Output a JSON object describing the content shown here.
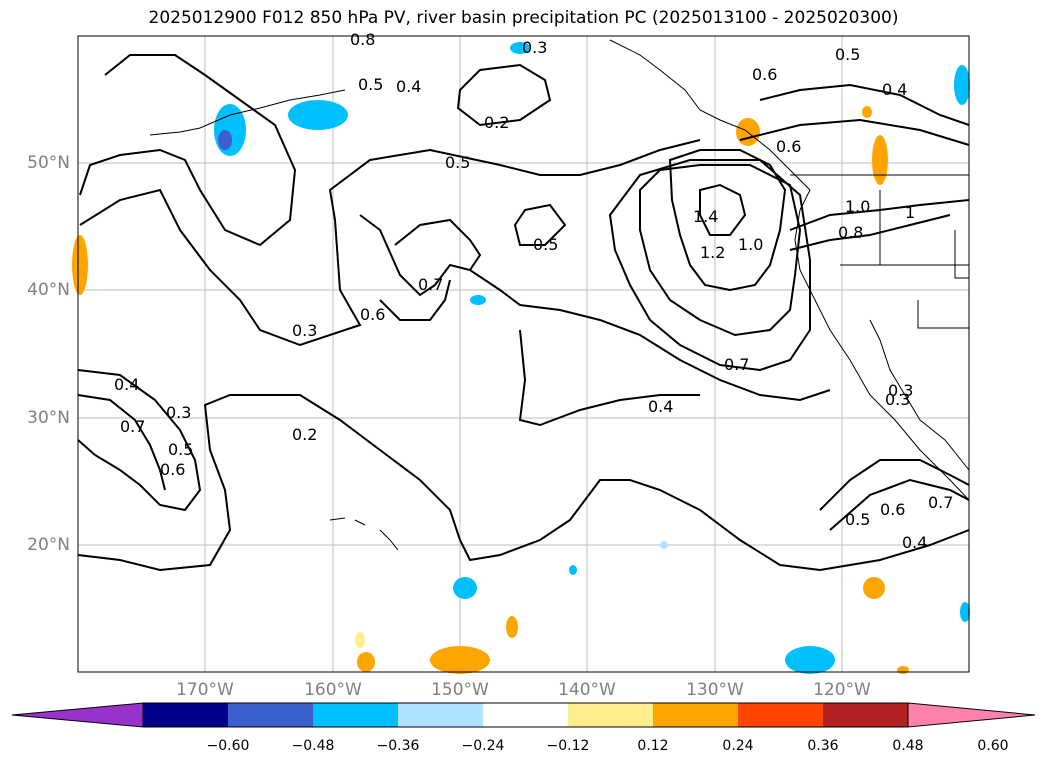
{
  "title": "2025012900 F012 850 hPa PV, river basin precipitation PC (2025013100 - 2025020300)",
  "map": {
    "lon_range": [
      -180,
      -110
    ],
    "lat_range": [
      10,
      60
    ],
    "lon_labels": [
      "170°W",
      "160°W",
      "150°W",
      "140°W",
      "130°W",
      "120°W"
    ],
    "lat_labels": [
      "50°N",
      "40°N",
      "30°N",
      "20°N"
    ],
    "contour_labels": [
      "0.8",
      "0.3",
      "0.5",
      "0.4",
      "0.2",
      "0.5",
      "0.6",
      "0.5",
      "0.4",
      "0.6",
      "1.0",
      "0.8",
      "1",
      "1.4",
      "1.2",
      "1.0",
      "0.5",
      "0.7",
      "0.6",
      "0.3",
      "0.7",
      "0.4",
      "0.3",
      "0.2",
      "0.4",
      "0.3",
      "0.7",
      "0.5",
      "0.6",
      "0.3",
      "0.5",
      "0.6",
      "0.7",
      "0.4"
    ]
  },
  "colorbar": {
    "colors": [
      "#9932cc",
      "#00008b",
      "#3a5fcd",
      "#00bfff",
      "#b0e2ff",
      "#ffffff",
      "#ffec8b",
      "#ffa500",
      "#ff4500",
      "#b22222",
      "#ff82ab"
    ],
    "ticks": [
      "−0.60",
      "−0.48",
      "−0.36",
      "−0.24",
      "−0.12",
      "0.12",
      "0.24",
      "0.36",
      "0.48",
      "0.60"
    ]
  }
}
